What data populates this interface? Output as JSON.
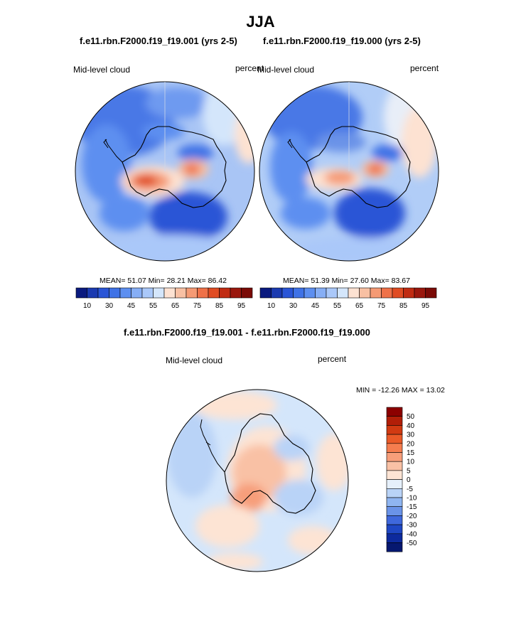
{
  "title": "JJA",
  "top_left": {
    "case": "f.e11.rbn.F2000.f19_f19.001 (yrs 2-5)",
    "variable": "Mid-level cloud",
    "units": "percent",
    "stats": {
      "mean_label": "MEAN=",
      "mean": "51.07",
      "min_label": "Min=",
      "min": "28.21",
      "max_label": "Max=",
      "max": "86.42"
    }
  },
  "top_right": {
    "case": "f.e11.rbn.F2000.f19_f19.000 (yrs 2-5)",
    "variable": "Mid-level cloud",
    "units": "percent",
    "stats": {
      "mean_label": "MEAN=",
      "mean": "51.39",
      "min_label": "Min=",
      "min": "27.60",
      "max_label": "Max=",
      "max": "83.67"
    }
  },
  "difference": {
    "case": "f.e11.rbn.F2000.f19_f19.001 - f.e11.rbn.F2000.f19_f19.000",
    "variable": "Mid-level cloud",
    "units": "percent",
    "minmax_label": "MIN = -12.26 MAX =  13.02"
  },
  "colorbar_horizontal": {
    "colors": [
      "#0a1a7f",
      "#1b3ab0",
      "#2a55d6",
      "#3f72e6",
      "#5d8ff0",
      "#86aef5",
      "#aac8f9",
      "#d4e6fb",
      "#fde2d2",
      "#f8c0a3",
      "#f59a74",
      "#ef7148",
      "#e04c23",
      "#c02b12",
      "#9a170d",
      "#7a0a06"
    ],
    "ticks": [
      "10",
      "30",
      "45",
      "55",
      "65",
      "75",
      "85",
      "95"
    ]
  },
  "colorbar_vertical": {
    "colors": [
      "#8c0000",
      "#b21e08",
      "#d13a12",
      "#ea5a28",
      "#f57d4f",
      "#f79e7a",
      "#f9c1a5",
      "#fde4d4",
      "#e6f0fb",
      "#b9d3f7",
      "#8fb5f1",
      "#6a93e8",
      "#3f68dc",
      "#1f47c4",
      "#0d2a9e",
      "#061870"
    ],
    "ticks": [
      "50",
      "40",
      "30",
      "20",
      "15",
      "10",
      "5",
      "0",
      "-5",
      "-10",
      "-15",
      "-20",
      "-30",
      "-40",
      "-50"
    ]
  },
  "chart_data": [
    {
      "type": "polar-contour-map",
      "title": "f.e11.rbn.F2000.f19_f19.001 (yrs 2-5)",
      "variable": "Mid-level cloud",
      "units": "percent",
      "mean": 51.07,
      "min": 28.21,
      "max": 86.42,
      "contour_levels": [
        10,
        20,
        30,
        40,
        45,
        50,
        55,
        60,
        65,
        70,
        75,
        80,
        85,
        90,
        95
      ]
    },
    {
      "type": "polar-contour-map",
      "title": "f.e11.rbn.F2000.f19_f19.000 (yrs 2-5)",
      "variable": "Mid-level cloud",
      "units": "percent",
      "mean": 51.39,
      "min": 27.6,
      "max": 83.67,
      "contour_levels": [
        10,
        20,
        30,
        40,
        45,
        50,
        55,
        60,
        65,
        70,
        75,
        80,
        85,
        90,
        95
      ]
    },
    {
      "type": "polar-contour-map",
      "title": "f.e11.rbn.F2000.f19_f19.001 - f.e11.rbn.F2000.f19_f19.000",
      "variable": "Mid-level cloud",
      "units": "percent",
      "min": -12.26,
      "max": 13.02,
      "contour_levels": [
        -50,
        -40,
        -30,
        -20,
        -15,
        -10,
        -5,
        0,
        5,
        10,
        15,
        20,
        30,
        40,
        50
      ]
    }
  ]
}
